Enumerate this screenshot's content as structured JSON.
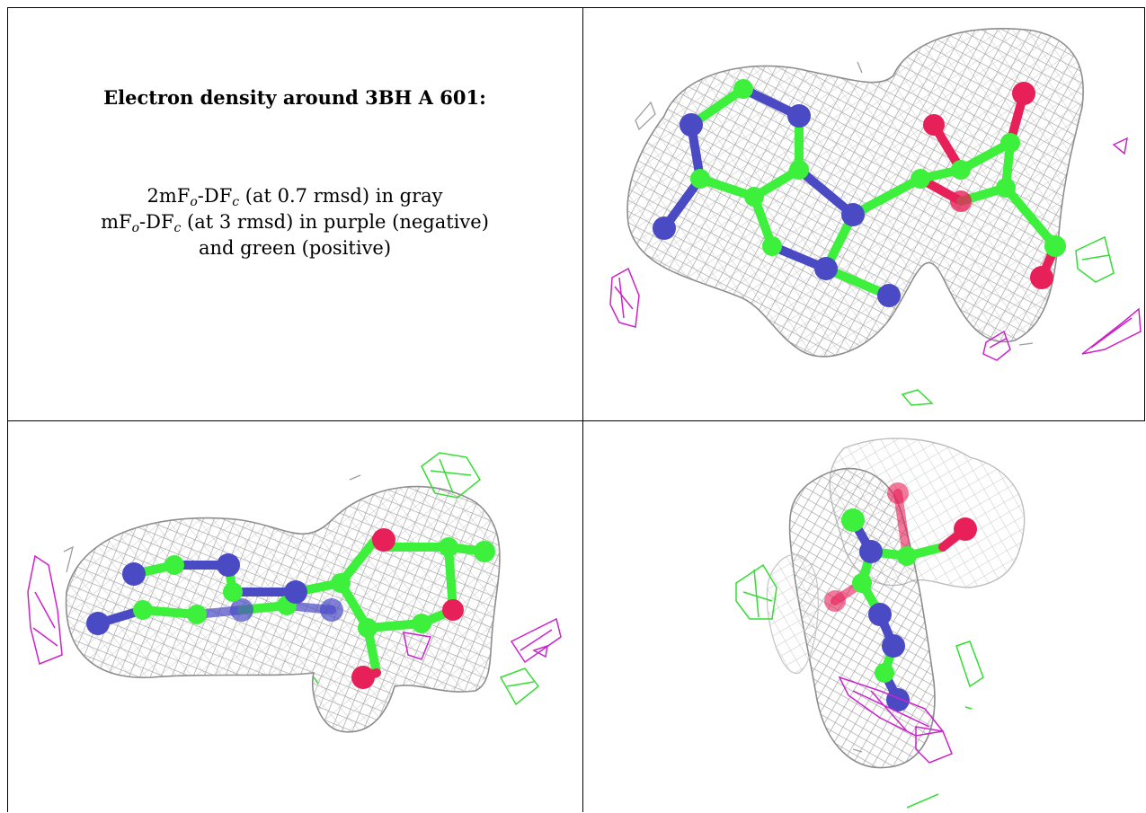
{
  "caption": {
    "title": "Electron density around 3BH A 601:",
    "line1": {
      "a": "2mF",
      "a_sub": "o",
      "b": "-DF",
      "b_sub": "c",
      "c": " (at 0.7 rmsd) in gray"
    },
    "line2": {
      "a": "mF",
      "a_sub": "o",
      "b": "-DF",
      "b_sub": "c",
      "c": " (at 3 rmsd) in purple (negative)"
    },
    "line3": "and green (positive)"
  },
  "colors": {
    "mesh_gray": "#9e9e9e",
    "carbon_green": "#3cf03c",
    "nitrogen_blue": "#4a4ac4",
    "oxygen_red": "#e8205a",
    "negative_purple": "#cc22cc",
    "positive_green": "#33dd33"
  },
  "panels": [
    {
      "view": "top-right",
      "subject": "ligand-with-density"
    },
    {
      "view": "bottom-left",
      "subject": "ligand-with-density"
    },
    {
      "view": "bottom-right",
      "subject": "ligand-with-density"
    }
  ]
}
